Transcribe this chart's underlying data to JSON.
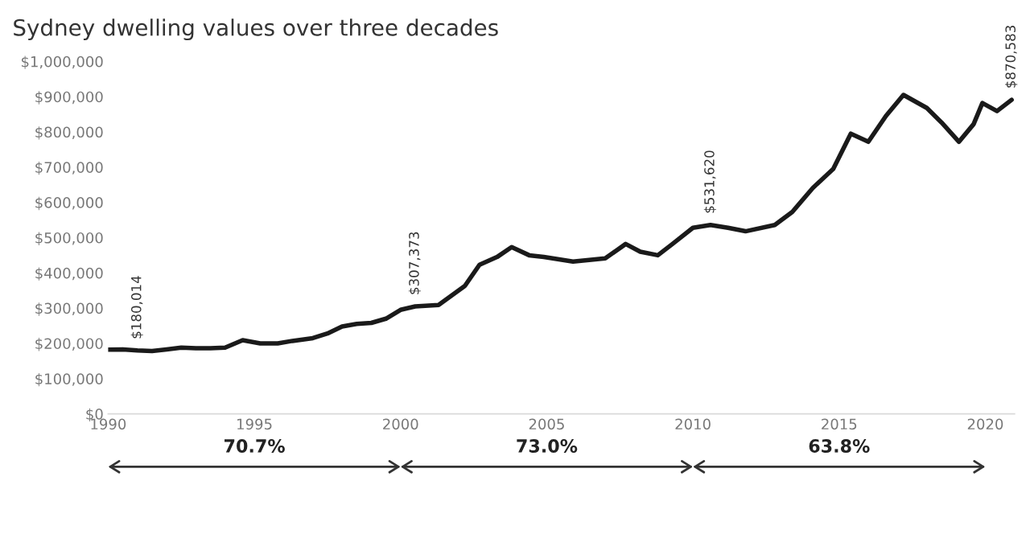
{
  "chart_data": {
    "type": "line",
    "title": "Sydney dwelling values over three decades",
    "x": [
      1990,
      1990.5,
      1991,
      1991.5,
      1992,
      1992.5,
      1993,
      1993.5,
      1994,
      1994.6,
      1995.2,
      1995.8,
      1996.3,
      1997,
      1997.5,
      1998,
      1998.5,
      1999,
      1999.5,
      2000,
      2000.5,
      2001.3,
      2002.2,
      2002.7,
      2003.3,
      2003.8,
      2004.4,
      2004.9,
      2005.9,
      2007,
      2007.7,
      2008.2,
      2008.8,
      2009.3,
      2010,
      2010.6,
      2011.2,
      2011.8,
      2012.8,
      2013.4,
      2014.1,
      2014.8,
      2015.4,
      2016,
      2016.6,
      2017.2,
      2018,
      2018.5,
      2019.1,
      2019.6,
      2019.9,
      2020.4,
      2020.9
    ],
    "series": [
      {
        "color": "#1a1a1a",
        "values": [
          182000,
          183000,
          180000,
          178000,
          183000,
          188000,
          186000,
          186000,
          188000,
          209000,
          200000,
          200000,
          207000,
          215000,
          228000,
          248000,
          255000,
          258000,
          270000,
          295000,
          305000,
          309000,
          363000,
          423000,
          445000,
          473000,
          450000,
          445000,
          432000,
          441000,
          482000,
          460000,
          450000,
          482000,
          528000,
          536000,
          528000,
          518000,
          536000,
          573000,
          641000,
          695000,
          795000,
          772000,
          845000,
          905000,
          868000,
          827000,
          772000,
          822000,
          882000,
          859000,
          891000
        ]
      }
    ],
    "xlim": [
      1990,
      2021
    ],
    "xticks": [
      1990,
      1995,
      2000,
      2005,
      2010,
      2015,
      2020
    ],
    "ylim": [
      0,
      1000000
    ],
    "yticks": [
      {
        "value": 0,
        "label": "$0"
      },
      {
        "value": 100000,
        "label": "$100,000"
      },
      {
        "value": 200000,
        "label": "$200,000"
      },
      {
        "value": 300000,
        "label": "$300,000"
      },
      {
        "value": 400000,
        "label": "$400,000"
      },
      {
        "value": 500000,
        "label": "$500,000"
      },
      {
        "value": 600000,
        "label": "$600,000"
      },
      {
        "value": 700000,
        "label": "$700,000"
      },
      {
        "value": 800000,
        "label": "$800,000"
      },
      {
        "value": 900000,
        "label": "$900,000"
      },
      {
        "value": 1000000,
        "label": "$1,000,000"
      }
    ],
    "grid": false,
    "legend": false,
    "annotations": [
      {
        "text": "$180,014",
        "x": 1991,
        "y": 180000
      },
      {
        "text": "$307,373",
        "x": 2000.5,
        "y": 305000
      },
      {
        "text": "$531,620",
        "x": 2010.6,
        "y": 536000
      },
      {
        "text": "$870,583",
        "x": 2020.9,
        "y": 891000
      },
      "70.7%",
      "73.0%",
      "63.8%"
    ]
  }
}
